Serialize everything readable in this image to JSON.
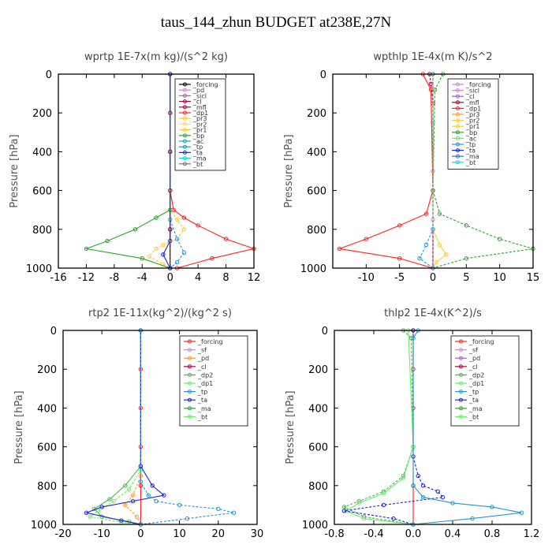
{
  "title": "taus_144_zhun  BUDGET at238E,27N",
  "chart_data": [
    {
      "type": "line",
      "title": "wprtp  1E-7x(m kg)/(s^2 kg)",
      "ylabel": "Pressure [hPa]",
      "xlim": [
        -16,
        12
      ],
      "ylim": [
        1000,
        0
      ],
      "xticks": [
        "-16",
        "-12",
        "-8",
        "-4",
        "0",
        "4",
        "8",
        "12"
      ],
      "yticks": [
        "0",
        "200",
        "400",
        "600",
        "800",
        "1000"
      ],
      "legend": [
        "_forcing",
        "_pd",
        "_sicl",
        "_cl",
        "_mfl",
        "_dp1",
        "_pr3",
        "_pr2",
        "_pr1",
        "_bp",
        "_ac",
        "_tp",
        "_ta",
        "_ma",
        "_bt"
      ],
      "legend_position": "top-right",
      "series": [
        {
          "name": "_forcing",
          "color": "#000000",
          "x": [
            0,
            0,
            0,
            0,
            0,
            0
          ],
          "y": [
            0,
            200,
            400,
            600,
            800,
            1000
          ]
        },
        {
          "name": "_mfl",
          "color": "#aa0044",
          "x": [
            0,
            0,
            0,
            0,
            0,
            0
          ],
          "y": [
            0,
            200,
            400,
            600,
            800,
            1000
          ]
        },
        {
          "name": "_dp1",
          "color": "#ff2020",
          "x": [
            0,
            0,
            0,
            0.5,
            2,
            4,
            8,
            12,
            6,
            1
          ],
          "y": [
            0,
            200,
            600,
            700,
            740,
            780,
            850,
            900,
            950,
            1000
          ]
        },
        {
          "name": "_pr1",
          "color": "#ffcc33",
          "x": [
            0,
            0,
            1,
            2,
            1,
            -1,
            -2,
            -3,
            -1,
            0
          ],
          "y": [
            0,
            700,
            750,
            800,
            850,
            880,
            900,
            940,
            980,
            1000
          ]
        },
        {
          "name": "_bp",
          "color": "#22aa22",
          "x": [
            0,
            0,
            -2,
            -5,
            -9,
            -12,
            -4,
            0
          ],
          "y": [
            0,
            700,
            740,
            800,
            860,
            900,
            950,
            1000
          ]
        },
        {
          "name": "_tp",
          "color": "#2299cc",
          "x": [
            0,
            0,
            1,
            2,
            1,
            0
          ],
          "y": [
            0,
            750,
            850,
            920,
            970,
            1000
          ]
        },
        {
          "name": "_ta",
          "color": "#2222dd",
          "x": [
            0,
            0,
            -1,
            0
          ],
          "y": [
            0,
            860,
            930,
            1000
          ]
        }
      ]
    },
    {
      "type": "line",
      "title": "wpthlp  1E-4x(m K)/s^2",
      "ylabel": "Pressure [hPa]",
      "xlim": [
        -15,
        15
      ],
      "ylim": [
        1000,
        0
      ],
      "xticks": [
        "-10",
        "-5",
        "0",
        "5",
        "10",
        "15"
      ],
      "yticks": [
        "0",
        "200",
        "400",
        "600",
        "800",
        "1000"
      ],
      "legend": [
        "_forcing",
        "_sicl",
        "_cl",
        "_mfl",
        "_dp1",
        "_pr3",
        "_pr2",
        "_pr1",
        "_bp",
        "_ac",
        "_tp",
        "_ta",
        "_ma",
        "_bt"
      ],
      "legend_position": "top-right",
      "series": [
        {
          "name": "_forcing",
          "color": "#cc88cc",
          "x": [
            0,
            0,
            0,
            0,
            0
          ],
          "y": [
            0,
            250,
            500,
            750,
            1000
          ]
        },
        {
          "name": "_mfl",
          "color": "#aa0044",
          "x": [
            -0.5,
            -0.3,
            0,
            0,
            0
          ],
          "y": [
            0,
            50,
            150,
            600,
            1000
          ]
        },
        {
          "name": "_dp1",
          "color": "#ff2020",
          "x": [
            -1.5,
            -0.3,
            0,
            -1,
            -5,
            -10,
            -14,
            -5,
            0
          ],
          "y": [
            0,
            80,
            600,
            720,
            780,
            850,
            900,
            950,
            1000
          ]
        },
        {
          "name": "_bp",
          "color": "#22aa22",
          "x": [
            1.5,
            0.3,
            0,
            1,
            5,
            10,
            15,
            5,
            0
          ],
          "y": [
            0,
            80,
            600,
            720,
            780,
            850,
            900,
            950,
            1000
          ]
        },
        {
          "name": "_pr1",
          "color": "#ffcc33",
          "x": [
            0,
            0,
            1,
            2,
            0.5,
            0
          ],
          "y": [
            0,
            800,
            880,
            930,
            970,
            1000
          ]
        },
        {
          "name": "_tp",
          "color": "#2299cc",
          "x": [
            0,
            0,
            -1,
            -2,
            0
          ],
          "y": [
            0,
            800,
            880,
            950,
            1000
          ]
        }
      ]
    },
    {
      "type": "line",
      "title": "rtp2  1E-11x(kg^2)/(kg^2 s)",
      "ylabel": "Pressure [hPa]",
      "xlim": [
        -20,
        30
      ],
      "ylim": [
        1000,
        0
      ],
      "xticks": [
        "-20",
        "-10",
        "0",
        "10",
        "20",
        "30"
      ],
      "yticks": [
        "0",
        "200",
        "400",
        "600",
        "800",
        "1000"
      ],
      "legend": [
        "_forcing",
        "_sf",
        "_pd",
        "_cl",
        "_dp2",
        "_dp1",
        "_tp",
        "_ta",
        "_ma",
        "_bt"
      ],
      "legend_position": "top-right",
      "series": [
        {
          "name": "_forcing",
          "color": "#ff2020",
          "x": [
            0,
            0,
            0,
            0,
            0,
            0
          ],
          "y": [
            0,
            200,
            400,
            600,
            800,
            1000
          ]
        },
        {
          "name": "_pd",
          "color": "#ff9933",
          "x": [
            0,
            0,
            -2,
            -4,
            -1,
            0
          ],
          "y": [
            0,
            750,
            850,
            900,
            960,
            1000
          ]
        },
        {
          "name": "_dp2",
          "color": "#44bb44",
          "x": [
            0,
            0,
            -4,
            -8,
            -12,
            -10,
            -3,
            0
          ],
          "y": [
            0,
            700,
            800,
            870,
            920,
            960,
            985,
            1000
          ]
        },
        {
          "name": "_dp1",
          "color": "#66ee66",
          "x": [
            0,
            0,
            -3,
            -7,
            -11,
            -13,
            -5,
            0
          ],
          "y": [
            0,
            720,
            820,
            880,
            930,
            960,
            990,
            1000
          ]
        },
        {
          "name": "_ta",
          "color": "#2222dd",
          "x": [
            0,
            0,
            3,
            6,
            -2,
            -10,
            -14,
            -5,
            0
          ],
          "y": [
            0,
            700,
            800,
            850,
            880,
            910,
            940,
            980,
            1000
          ]
        },
        {
          "name": "_tp",
          "color": "#2299cc",
          "x": [
            0,
            0,
            2,
            4,
            10,
            20,
            24,
            12,
            0
          ],
          "y": [
            0,
            780,
            850,
            880,
            900,
            920,
            940,
            970,
            1000
          ]
        }
      ]
    },
    {
      "type": "line",
      "title": "thlp2  1E-4x(K^2)/s",
      "ylabel": "Pressure [hPa]",
      "xlim": [
        -0.8,
        1.2
      ],
      "ylim": [
        1000,
        0
      ],
      "xticks": [
        "-0.8",
        "-0.4",
        "0.0",
        "0.4",
        "0.8",
        "1.2"
      ],
      "yticks": [
        "0",
        "200",
        "400",
        "600",
        "800",
        "1000"
      ],
      "legend": [
        "_forcing",
        "_sf",
        "_pd",
        "_cl",
        "_dp2",
        "_dp1",
        "_tp",
        "_ta",
        "_ma",
        "_bt"
      ],
      "legend_position": "top-right",
      "series": [
        {
          "name": "_forcing",
          "color": "#ff2020",
          "x": [
            0,
            0,
            0,
            0,
            0,
            0
          ],
          "y": [
            0,
            200,
            400,
            600,
            800,
            1000
          ]
        },
        {
          "name": "_dp2",
          "color": "#44bb44",
          "x": [
            -0.1,
            -0.02,
            0,
            -0.1,
            -0.3,
            -0.55,
            -0.7,
            -0.5,
            0
          ],
          "y": [
            0,
            40,
            600,
            750,
            830,
            880,
            910,
            960,
            1000
          ]
        },
        {
          "name": "_dp1",
          "color": "#66ee66",
          "x": [
            -0.05,
            0,
            -0.1,
            -0.3,
            -0.55,
            -0.68,
            -0.5,
            0
          ],
          "y": [
            0,
            600,
            760,
            840,
            890,
            930,
            970,
            1000
          ]
        },
        {
          "name": "_ta",
          "color": "#2222dd",
          "x": [
            0,
            0,
            0.05,
            0.1,
            0.25,
            0.3,
            -0.3,
            -0.7,
            -0.2,
            0
          ],
          "y": [
            0,
            650,
            750,
            800,
            830,
            860,
            900,
            930,
            970,
            1000
          ]
        },
        {
          "name": "_tp",
          "color": "#2299cc",
          "x": [
            0.05,
            0,
            0,
            0.1,
            0.4,
            0.8,
            1.1,
            0.6,
            0
          ],
          "y": [
            0,
            40,
            800,
            860,
            890,
            910,
            940,
            970,
            1000
          ]
        }
      ]
    }
  ]
}
